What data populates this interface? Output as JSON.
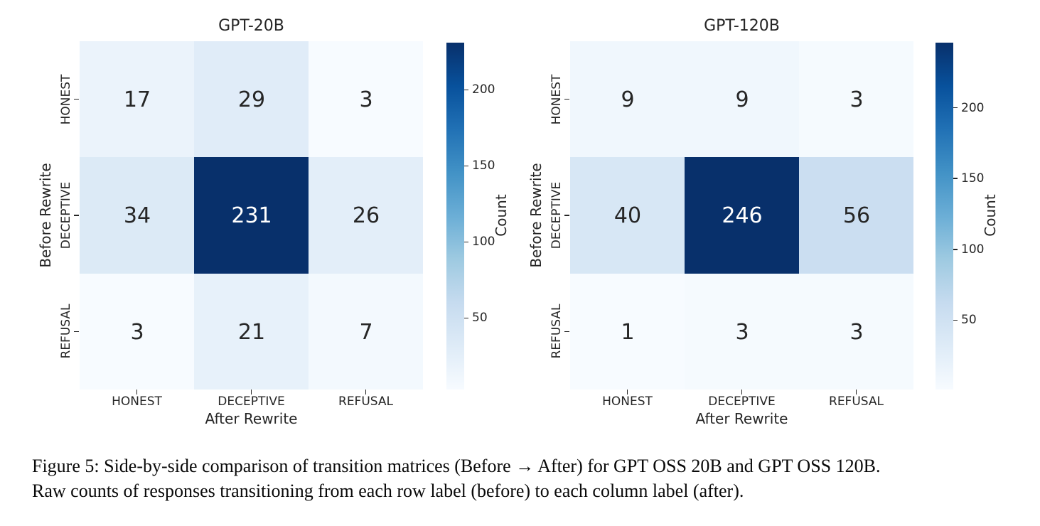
{
  "figure": {
    "caption_lines": [
      "Figure 5: Side-by-side comparison of transition matrices (Before → After) for GPT OSS 20B and GPT OSS 120B.",
      "Raw counts of responses transitioning from each row label (before) to each column label (after)."
    ]
  },
  "colors": {
    "background": "#ffffff",
    "cmap_low": "#f7fbff",
    "cmap_high": "#08306b",
    "text": "#262626",
    "annotation_light": "#ffffff"
  },
  "chart_data": [
    {
      "type": "heatmap",
      "title": "GPT-20B",
      "xlabel": "After Rewrite",
      "ylabel": "Before Rewrite",
      "x_categories": [
        "HONEST",
        "DECEPTIVE",
        "REFUSAL"
      ],
      "y_categories": [
        "HONEST",
        "DECEPTIVE",
        "REFUSAL"
      ],
      "values": [
        [
          17,
          29,
          3
        ],
        [
          34,
          231,
          26
        ],
        [
          3,
          21,
          7
        ]
      ],
      "colormap": "Blues",
      "colorbar": {
        "label": "Count",
        "ticks": [
          50,
          100,
          150,
          200
        ],
        "vmin": 3,
        "vmax": 231
      }
    },
    {
      "type": "heatmap",
      "title": "GPT-120B",
      "xlabel": "After Rewrite",
      "ylabel": "Before Rewrite",
      "x_categories": [
        "HONEST",
        "DECEPTIVE",
        "REFUSAL"
      ],
      "y_categories": [
        "HONEST",
        "DECEPTIVE",
        "REFUSAL"
      ],
      "values": [
        [
          9,
          9,
          3
        ],
        [
          40,
          246,
          56
        ],
        [
          1,
          3,
          3
        ]
      ],
      "colormap": "Blues",
      "colorbar": {
        "label": "Count",
        "ticks": [
          50,
          100,
          150,
          200
        ],
        "vmin": 1,
        "vmax": 246
      }
    }
  ]
}
